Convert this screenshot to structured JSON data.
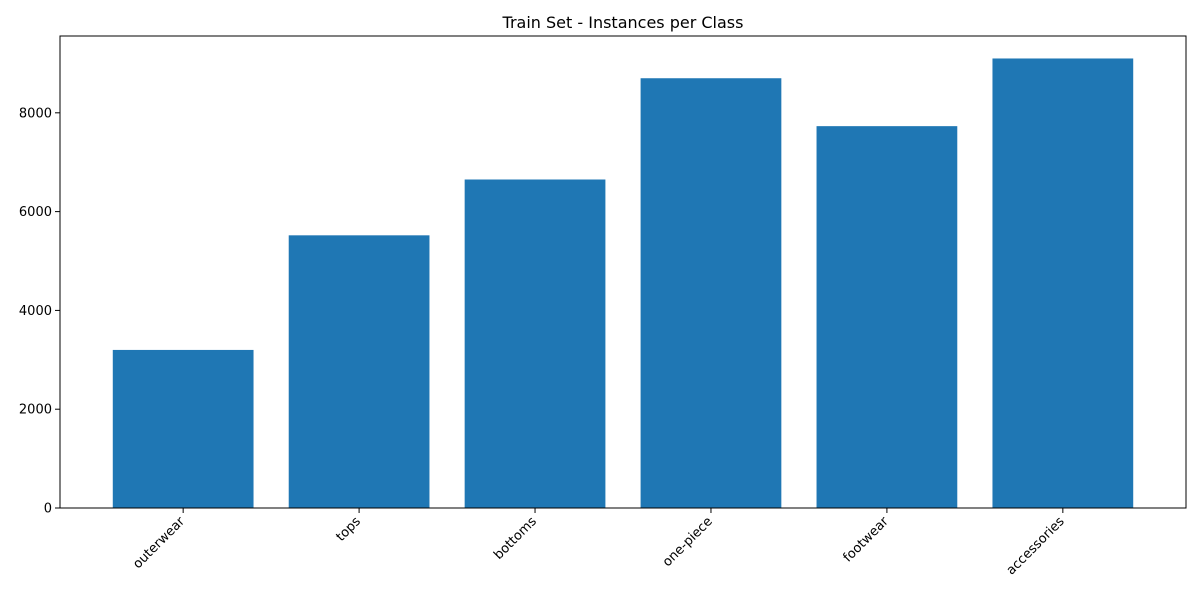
{
  "chart_data": {
    "type": "bar",
    "title": "Train Set - Instances per Class",
    "xlabel": "",
    "ylabel": "",
    "categories": [
      "outerwear",
      "tops",
      "bottoms",
      "one-piece",
      "footwear",
      "accessories"
    ],
    "values": [
      3200,
      5520,
      6650,
      8700,
      7730,
      9100
    ],
    "ylim": [
      0,
      9555
    ],
    "yticks": [
      0,
      2000,
      4000,
      6000,
      8000
    ],
    "ytick_labels": [
      "0",
      "2000",
      "4000",
      "6000",
      "8000"
    ],
    "bar_color": "#1f77b4",
    "grid": false,
    "legend": false
  }
}
